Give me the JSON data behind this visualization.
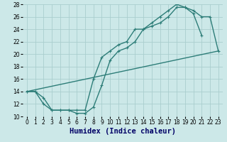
{
  "xlabel": "Humidex (Indice chaleur)",
  "bg_color": "#cce8e8",
  "line_color": "#2d7d78",
  "grid_color": "#aacece",
  "xlim": [
    -0.5,
    23.5
  ],
  "ylim": [
    10,
    28
  ],
  "xticks": [
    0,
    1,
    2,
    3,
    4,
    5,
    6,
    7,
    8,
    9,
    10,
    11,
    12,
    13,
    14,
    15,
    16,
    17,
    18,
    19,
    20,
    21,
    22,
    23
  ],
  "yticks": [
    10,
    12,
    14,
    16,
    18,
    20,
    22,
    24,
    26,
    28
  ],
  "line1_x": [
    0,
    1,
    2,
    3,
    4,
    5,
    6,
    7,
    8,
    9,
    10,
    11,
    12,
    13,
    14,
    15,
    16,
    17,
    18,
    19,
    20,
    21,
    22,
    23
  ],
  "line1_y": [
    14,
    14,
    13,
    11,
    11,
    11,
    10.5,
    10.5,
    11.5,
    15,
    19,
    20.5,
    21,
    22,
    24,
    24.5,
    25,
    26,
    27.5,
    27.5,
    27,
    26,
    26,
    20.5
  ],
  "line2_x": [
    0,
    1,
    2,
    3,
    4,
    5,
    6,
    7,
    8,
    9,
    10,
    11,
    12,
    13,
    14,
    15,
    16,
    17,
    18,
    19,
    20,
    21
  ],
  "line2_y": [
    14,
    14,
    12,
    11,
    11,
    11,
    11,
    11,
    16,
    19.5,
    20.5,
    21.5,
    22,
    24,
    24,
    25,
    26,
    27,
    28,
    27.5,
    26.5,
    23
  ],
  "line3_x": [
    0,
    23
  ],
  "line3_y": [
    14,
    20.5
  ],
  "xlabel_color": "#000066",
  "xlabel_fontsize": 7.5,
  "tick_fontsize": 5.5,
  "linewidth": 1.0,
  "markersize": 3.5
}
